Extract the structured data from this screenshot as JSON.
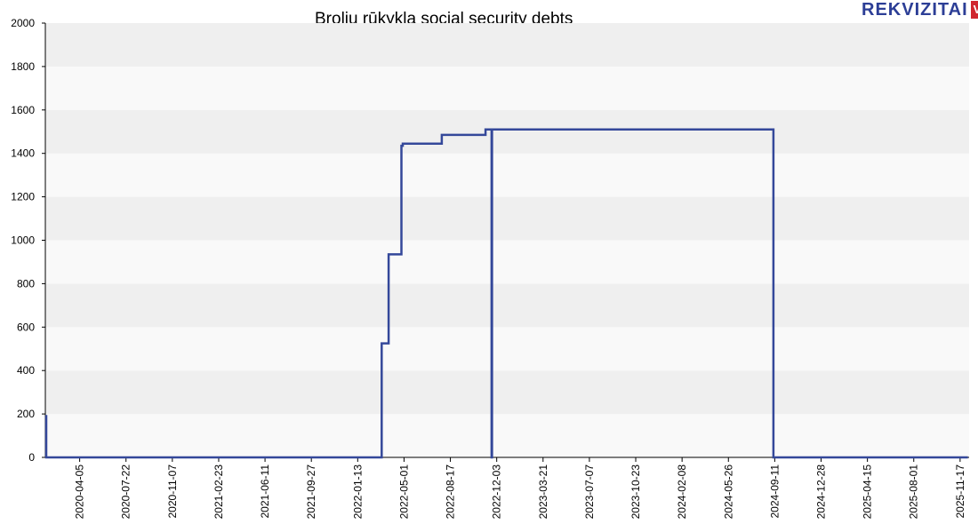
{
  "chart_data": {
    "type": "line",
    "title": "Brolių rūkykla social security debts",
    "xlabel": "",
    "ylabel": "",
    "ylim": [
      0,
      2000
    ],
    "y_ticks": [
      0,
      200,
      400,
      600,
      800,
      1000,
      1200,
      1400,
      1600,
      1800,
      2000
    ],
    "x_range": [
      "2020-01-16",
      "2025-12-08"
    ],
    "x_ticks": [
      "2020-04-05",
      "2020-07-22",
      "2020-11-07",
      "2021-02-23",
      "2021-06-11",
      "2021-09-27",
      "2022-01-13",
      "2022-05-01",
      "2022-08-17",
      "2022-12-03",
      "2023-03-21",
      "2023-07-07",
      "2023-10-23",
      "2024-02-08",
      "2024-05-26",
      "2024-09-11",
      "2024-12-28",
      "2025-04-15",
      "2025-08-01",
      "2025-11-17"
    ],
    "grid": true,
    "legend": "none",
    "series": [
      {
        "color": "#34489a",
        "step": true,
        "points": [
          [
            "2020-01-16",
            190
          ],
          [
            "2020-01-18",
            0
          ],
          [
            "2022-03-10",
            525
          ],
          [
            "2022-03-26",
            935
          ],
          [
            "2022-04-25",
            1435
          ],
          [
            "2022-04-28",
            1445
          ],
          [
            "2022-07-28",
            1485
          ],
          [
            "2022-11-07",
            1510
          ],
          [
            "2022-11-21",
            0
          ],
          [
            "2022-11-22",
            1510
          ],
          [
            "2024-09-08",
            0
          ],
          [
            "2025-12-05",
            0
          ]
        ]
      }
    ]
  },
  "logo": {
    "text": "REKVIZITAI",
    "badge": "VŽ"
  }
}
